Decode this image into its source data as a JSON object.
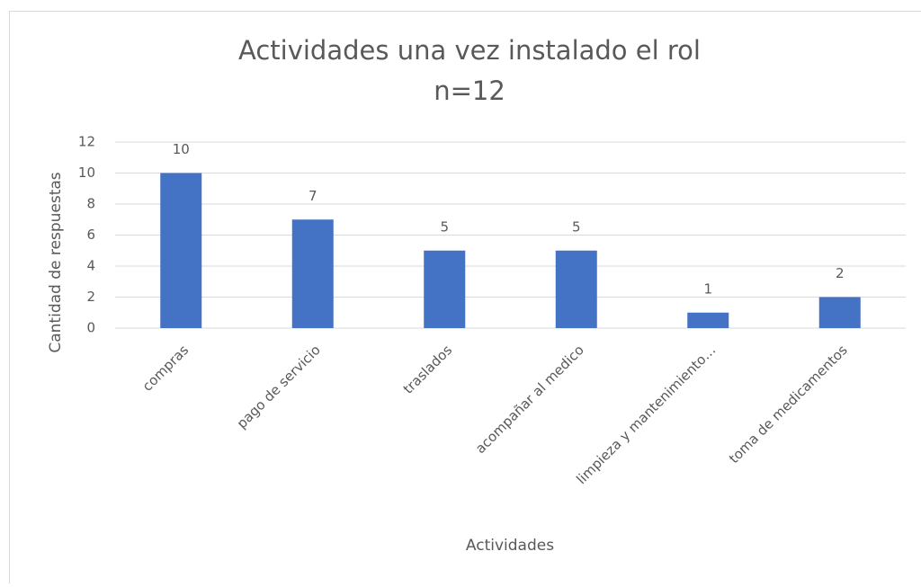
{
  "chart_data": {
    "type": "bar",
    "title": "Actividades una vez instalado el rol",
    "subtitle": "n=12",
    "x_label": "Actividades",
    "y_label": "Cantidad de respuestas",
    "categories": [
      "compras",
      "pago de servicio",
      "traslados",
      "acompañar al medico",
      "limpieza y mantenimiento…",
      "toma de medicamentos"
    ],
    "values": [
      10,
      7,
      5,
      5,
      1,
      2
    ],
    "color": "#4472c4",
    "ylim": [
      0,
      12
    ],
    "yticks": [
      0,
      2,
      4,
      6,
      8,
      10,
      12
    ],
    "grid": true
  }
}
